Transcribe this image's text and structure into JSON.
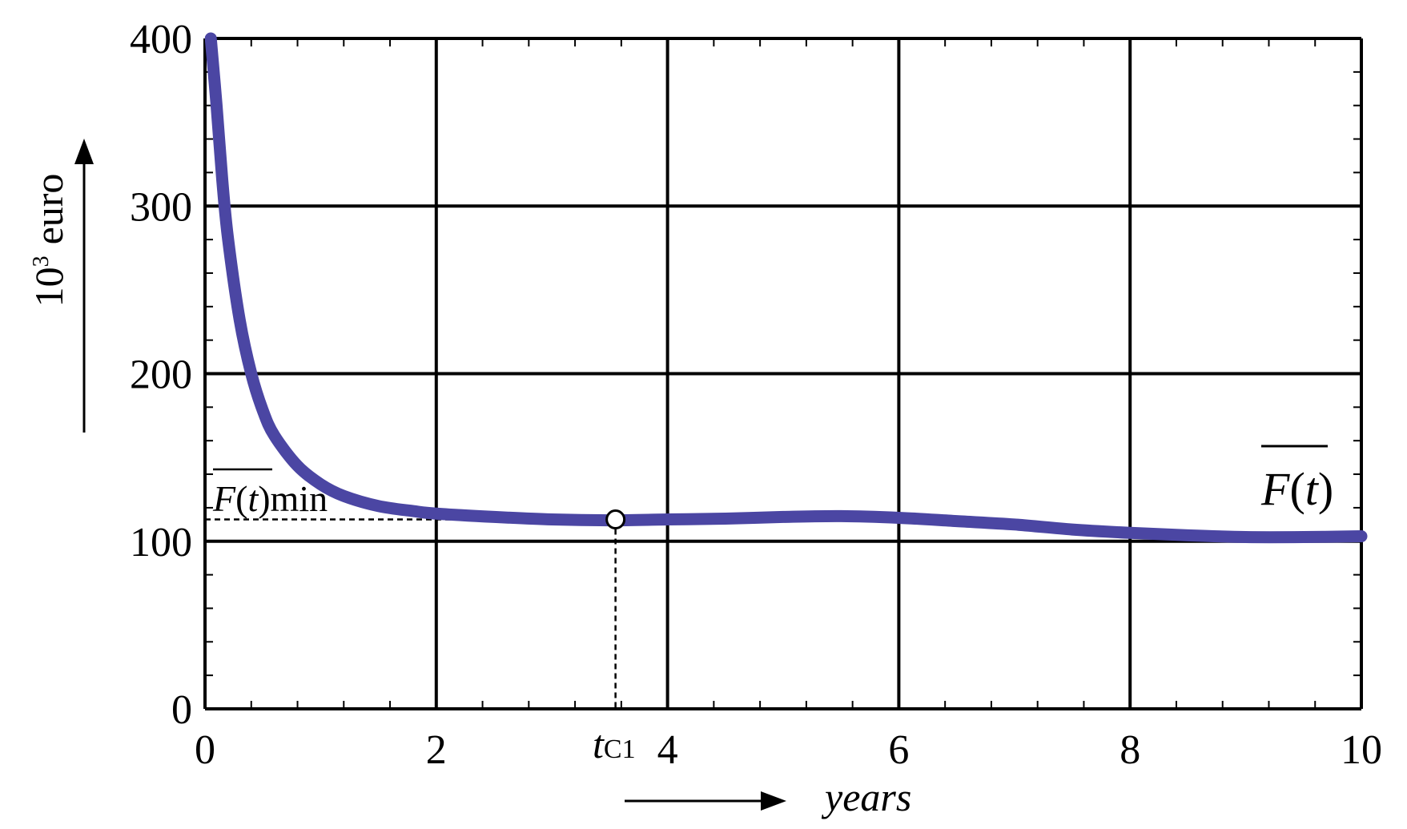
{
  "chart_data": {
    "type": "line",
    "title": "",
    "xlabel": "years",
    "ylabel_base": "10",
    "ylabel_exp": "3",
    "ylabel_unit": "euro",
    "xlim": [
      0,
      10
    ],
    "ylim": [
      0,
      400
    ],
    "xticks": [
      0,
      2,
      4,
      6,
      8,
      10
    ],
    "yticks": [
      0,
      100,
      200,
      300,
      400
    ],
    "grid": true,
    "line_color": "#4b46a3",
    "series": [
      {
        "name": "F(t)",
        "x": [
          0.05,
          0.1,
          0.15,
          0.2,
          0.3,
          0.4,
          0.5,
          0.6,
          0.8,
          1.0,
          1.2,
          1.5,
          1.8,
          2.0,
          2.5,
          3.0,
          3.5,
          4.0,
          4.5,
          5.0,
          5.5,
          6.0,
          6.5,
          7.0,
          7.5,
          8.0,
          8.5,
          9.0,
          9.5,
          10.0
        ],
        "values": [
          400,
          360,
          315,
          280,
          232,
          200,
          178,
          163,
          145,
          134,
          127,
          121,
          118,
          116.5,
          114.5,
          113,
          112.5,
          113,
          113.5,
          114.5,
          115,
          114,
          112,
          110,
          107,
          105,
          103.5,
          102.5,
          102.5,
          103
        ]
      }
    ],
    "annotations": {
      "f_label_main": "F",
      "f_label_paren_open": "(",
      "f_label_var": "t",
      "f_label_paren_close": ")",
      "fmin_label_main": "F",
      "fmin_label_paren_open": "(",
      "fmin_label_var": "t",
      "fmin_label_paren_close": ")",
      "fmin_label_suffix": "min",
      "tc_label_var": "t",
      "tc_label_sub": "C1",
      "min_point": {
        "x": 3.55,
        "y": 113
      }
    }
  }
}
